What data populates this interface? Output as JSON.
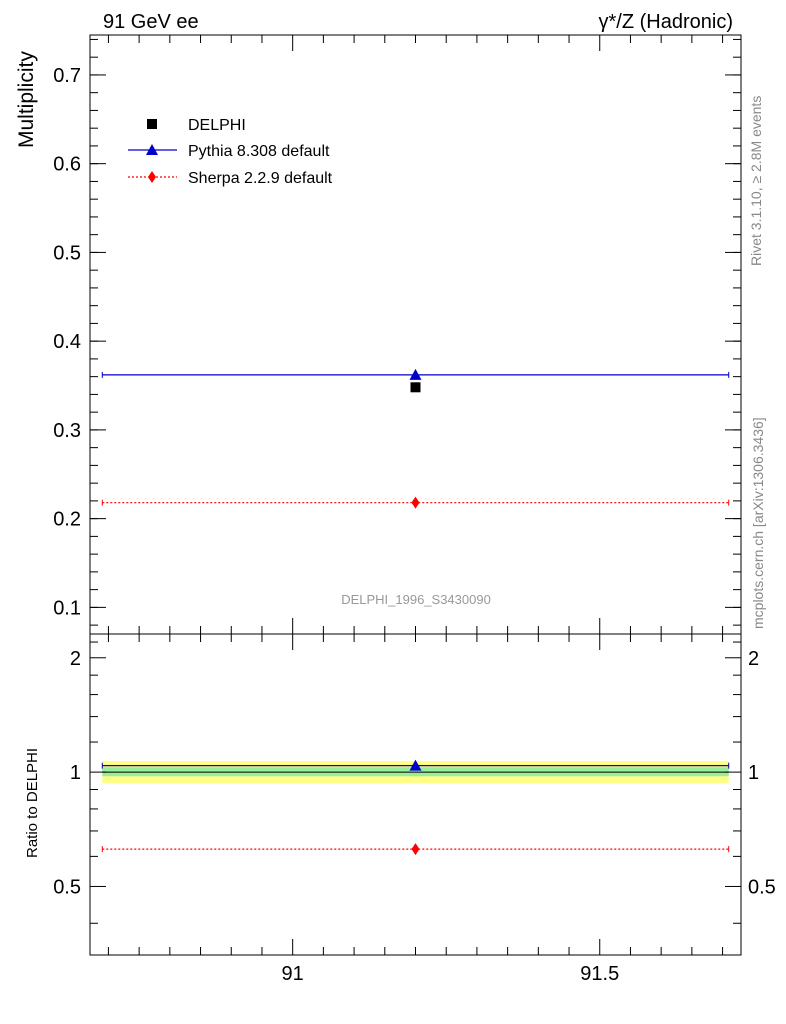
{
  "header": {
    "left": "91 GeV ee",
    "right": "γ*/Z (Hadronic)"
  },
  "side_labels": {
    "rivet": "Rivet 3.1.10, ≥ 2.8M events",
    "mcplots": "mcplots.cern.ch [arXiv:1306.3436]"
  },
  "watermark": "DELPHI_1996_S3430090",
  "colors": {
    "data": "#000000",
    "pythia": "#0000cc",
    "sherpa": "#ff0000",
    "band_inner": "#99ee99",
    "band_outer": "#ffff88",
    "side_text": "#888888"
  },
  "chart_data": [
    {
      "type": "scatter",
      "panel": "main",
      "ylabel": "Multiplicity",
      "xlim": [
        90.67,
        91.73
      ],
      "ylim": [
        0.07,
        0.745
      ],
      "yticks": [
        0.1,
        0.2,
        0.3,
        0.4,
        0.5,
        0.6,
        0.7
      ],
      "ytick_labels": [
        "0.1",
        "0.2",
        "0.3",
        "0.4",
        "0.5",
        "0.6",
        "0.7"
      ],
      "legend_position": "top-left",
      "series": [
        {
          "name": "DELPHI",
          "marker": "square",
          "line": "none",
          "x": [
            91.2
          ],
          "y": [
            0.348
          ],
          "xerr": [
            0
          ],
          "yerr": [
            0.005
          ]
        },
        {
          "name": "Pythia 8.308 default",
          "marker": "triangle",
          "line": "solid",
          "x": [
            91.2
          ],
          "y": [
            0.362
          ],
          "xrange": [
            90.69,
            91.71
          ]
        },
        {
          "name": "Sherpa 2.2.9 default",
          "marker": "diamond",
          "line": "dotted",
          "x": [
            91.2
          ],
          "y": [
            0.218
          ],
          "xrange": [
            90.69,
            91.71
          ]
        }
      ]
    },
    {
      "type": "scatter",
      "panel": "ratio",
      "ylabel": "Ratio to DELPHI",
      "xlabel": "",
      "xlim": [
        90.67,
        91.73
      ],
      "ylim": [
        0.33,
        2.31
      ],
      "log_scale_y": true,
      "xticks": [
        91,
        91.5
      ],
      "xtick_labels": [
        "91",
        "91.5"
      ],
      "yticks": [
        0.5,
        1,
        2
      ],
      "ytick_labels": [
        "0.5",
        "1",
        "2"
      ],
      "band": {
        "x": [
          90.69,
          91.71
        ],
        "inner": [
          0.975,
          1.03
        ],
        "outer": [
          0.935,
          1.07
        ]
      },
      "series": [
        {
          "name": "Pythia 8.308 default",
          "marker": "triangle",
          "line": "solid",
          "x": [
            91.2
          ],
          "y": [
            1.04
          ],
          "xrange": [
            90.69,
            91.71
          ]
        },
        {
          "name": "Sherpa 2.2.9 default",
          "marker": "diamond",
          "line": "dotted",
          "x": [
            91.2
          ],
          "y": [
            0.627
          ],
          "xrange": [
            90.69,
            91.71
          ]
        }
      ]
    }
  ]
}
